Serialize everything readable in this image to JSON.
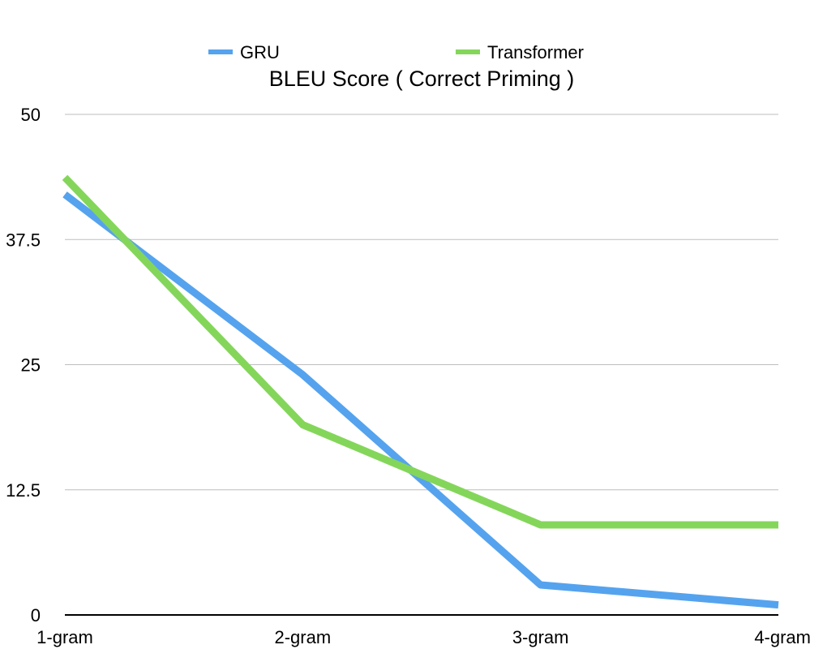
{
  "chart_data": {
    "type": "line",
    "title": "BLEU Score ( Correct Priming )",
    "xlabel": "",
    "ylabel": "",
    "categories": [
      "1-gram",
      "2-gram",
      "3-gram",
      "4-gram"
    ],
    "series": [
      {
        "name": "GRU",
        "color": "#55A3EE",
        "values": [
          42,
          24,
          3,
          1
        ]
      },
      {
        "name": "Transformer",
        "color": "#84D65A",
        "values": [
          43.7,
          19,
          9,
          9
        ]
      }
    ],
    "ylim": [
      0,
      50
    ],
    "yticks": [
      "0",
      "12.5",
      "25",
      "37.5",
      "50"
    ],
    "grid": true,
    "legend_position": "top"
  }
}
